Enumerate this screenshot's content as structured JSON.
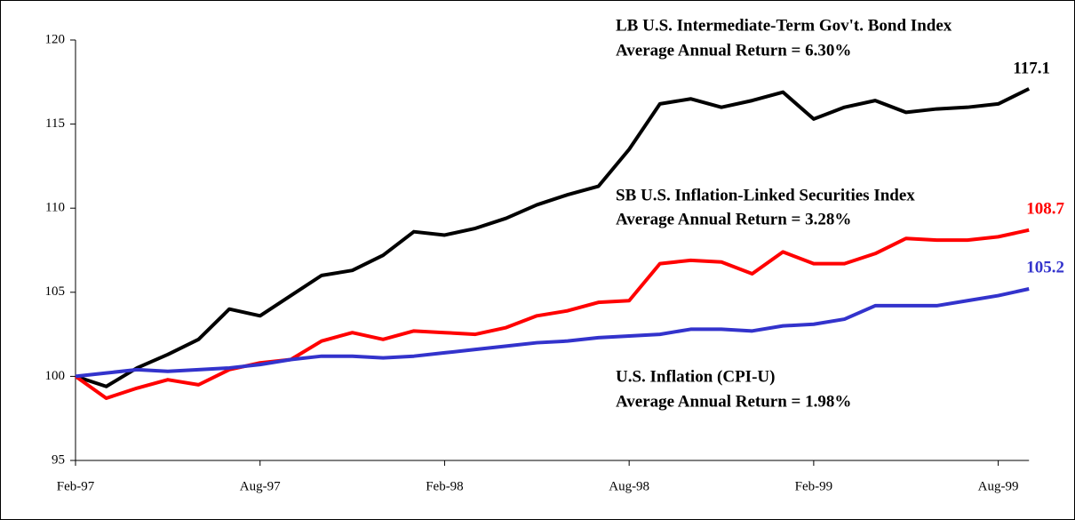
{
  "chart_data": {
    "type": "line",
    "categories": [
      "Feb-97",
      null,
      null,
      null,
      null,
      null,
      "Aug-97",
      null,
      null,
      null,
      null,
      null,
      "Feb-98",
      null,
      null,
      null,
      null,
      null,
      "Aug-98",
      null,
      null,
      null,
      null,
      null,
      "Feb-99",
      null,
      null,
      null,
      null,
      null,
      "Aug-99",
      null
    ],
    "ylim": [
      95,
      120
    ],
    "yticks": [
      95,
      100,
      105,
      110,
      115,
      120
    ],
    "series": [
      {
        "name": "LB U.S. Intermediate-Term Gov't. Bond Index",
        "annotation": "Average Annual Return = 6.30%",
        "color": "#000000",
        "values": [
          100,
          99.4,
          100.5,
          101.3,
          102.2,
          104.0,
          103.6,
          104.8,
          106.0,
          106.3,
          107.2,
          108.6,
          108.4,
          108.8,
          109.4,
          110.2,
          110.8,
          111.3,
          113.5,
          116.2,
          116.5,
          116.0,
          116.4,
          116.9,
          115.3,
          116.0,
          116.4,
          115.7,
          115.9,
          116.0,
          116.2,
          117.1
        ]
      },
      {
        "name": "SB U.S. Inflation-Linked Securities Index",
        "annotation": "Average Annual Return = 3.28%",
        "color": "#ff0000",
        "values": [
          100,
          98.7,
          99.3,
          99.8,
          99.5,
          100.4,
          100.8,
          101.0,
          102.1,
          102.6,
          102.2,
          102.7,
          102.6,
          102.5,
          102.9,
          103.6,
          103.9,
          104.4,
          104.5,
          106.7,
          106.9,
          106.8,
          106.1,
          107.4,
          106.7,
          106.7,
          107.3,
          108.2,
          108.1,
          108.1,
          108.3,
          108.7
        ]
      },
      {
        "name": "U.S. Inflation (CPI-U)",
        "annotation": "Average Annual Return = 1.98%",
        "color": "#3333cc",
        "values": [
          100,
          100.2,
          100.4,
          100.3,
          100.4,
          100.5,
          100.7,
          101.0,
          101.2,
          101.2,
          101.1,
          101.2,
          101.4,
          101.6,
          101.8,
          102.0,
          102.1,
          102.3,
          102.4,
          102.5,
          102.8,
          102.8,
          102.7,
          103.0,
          103.1,
          103.4,
          104.2,
          104.2,
          104.2,
          104.5,
          104.8,
          105.2
        ]
      }
    ]
  }
}
